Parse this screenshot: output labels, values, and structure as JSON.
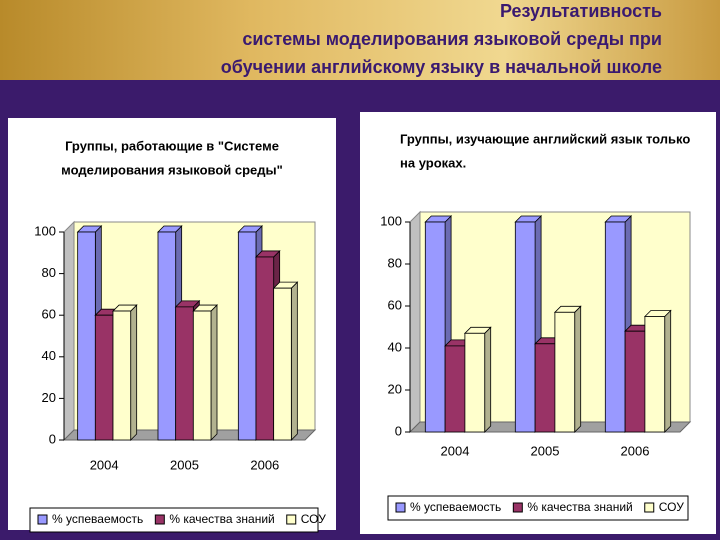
{
  "title": [
    "Результативность",
    "системы моделирования языковой среды  при",
    "обучении английскому языку в начальной школе"
  ],
  "chart_data": [
    {
      "type": "bar3d",
      "title": [
        "Группы, работающие в \"Системе",
        "моделирования языковой среды\""
      ],
      "categories": [
        "2004",
        "2005",
        "2006"
      ],
      "series": [
        {
          "name": "% успеваемость",
          "color": "#9999ff",
          "values": [
            100,
            100,
            100
          ]
        },
        {
          "name": "% качества знаний",
          "color": "#993366",
          "values": [
            60,
            64,
            88
          ]
        },
        {
          "name": "СОУ",
          "color": "#ffffcc",
          "values": [
            62,
            62,
            73
          ]
        }
      ],
      "ylim": [
        0,
        100
      ],
      "yticks": [
        0,
        20,
        40,
        60,
        80,
        100
      ],
      "grid": false,
      "legend": "bottom"
    },
    {
      "type": "bar3d",
      "title": [
        "Группы, изучающие английский язык только",
        "на уроках."
      ],
      "categories": [
        "2004",
        "2005",
        "2006"
      ],
      "series": [
        {
          "name": "% успеваемость",
          "color": "#9999ff",
          "values": [
            100,
            100,
            100
          ]
        },
        {
          "name": "% качества знаний",
          "color": "#993366",
          "values": [
            41,
            42,
            48
          ]
        },
        {
          "name": "СОУ",
          "color": "#ffffcc",
          "values": [
            47,
            57,
            55
          ]
        }
      ],
      "ylim": [
        0,
        100
      ],
      "yticks": [
        0,
        20,
        40,
        60,
        80,
        100
      ],
      "grid": false,
      "legend": "bottom"
    }
  ]
}
